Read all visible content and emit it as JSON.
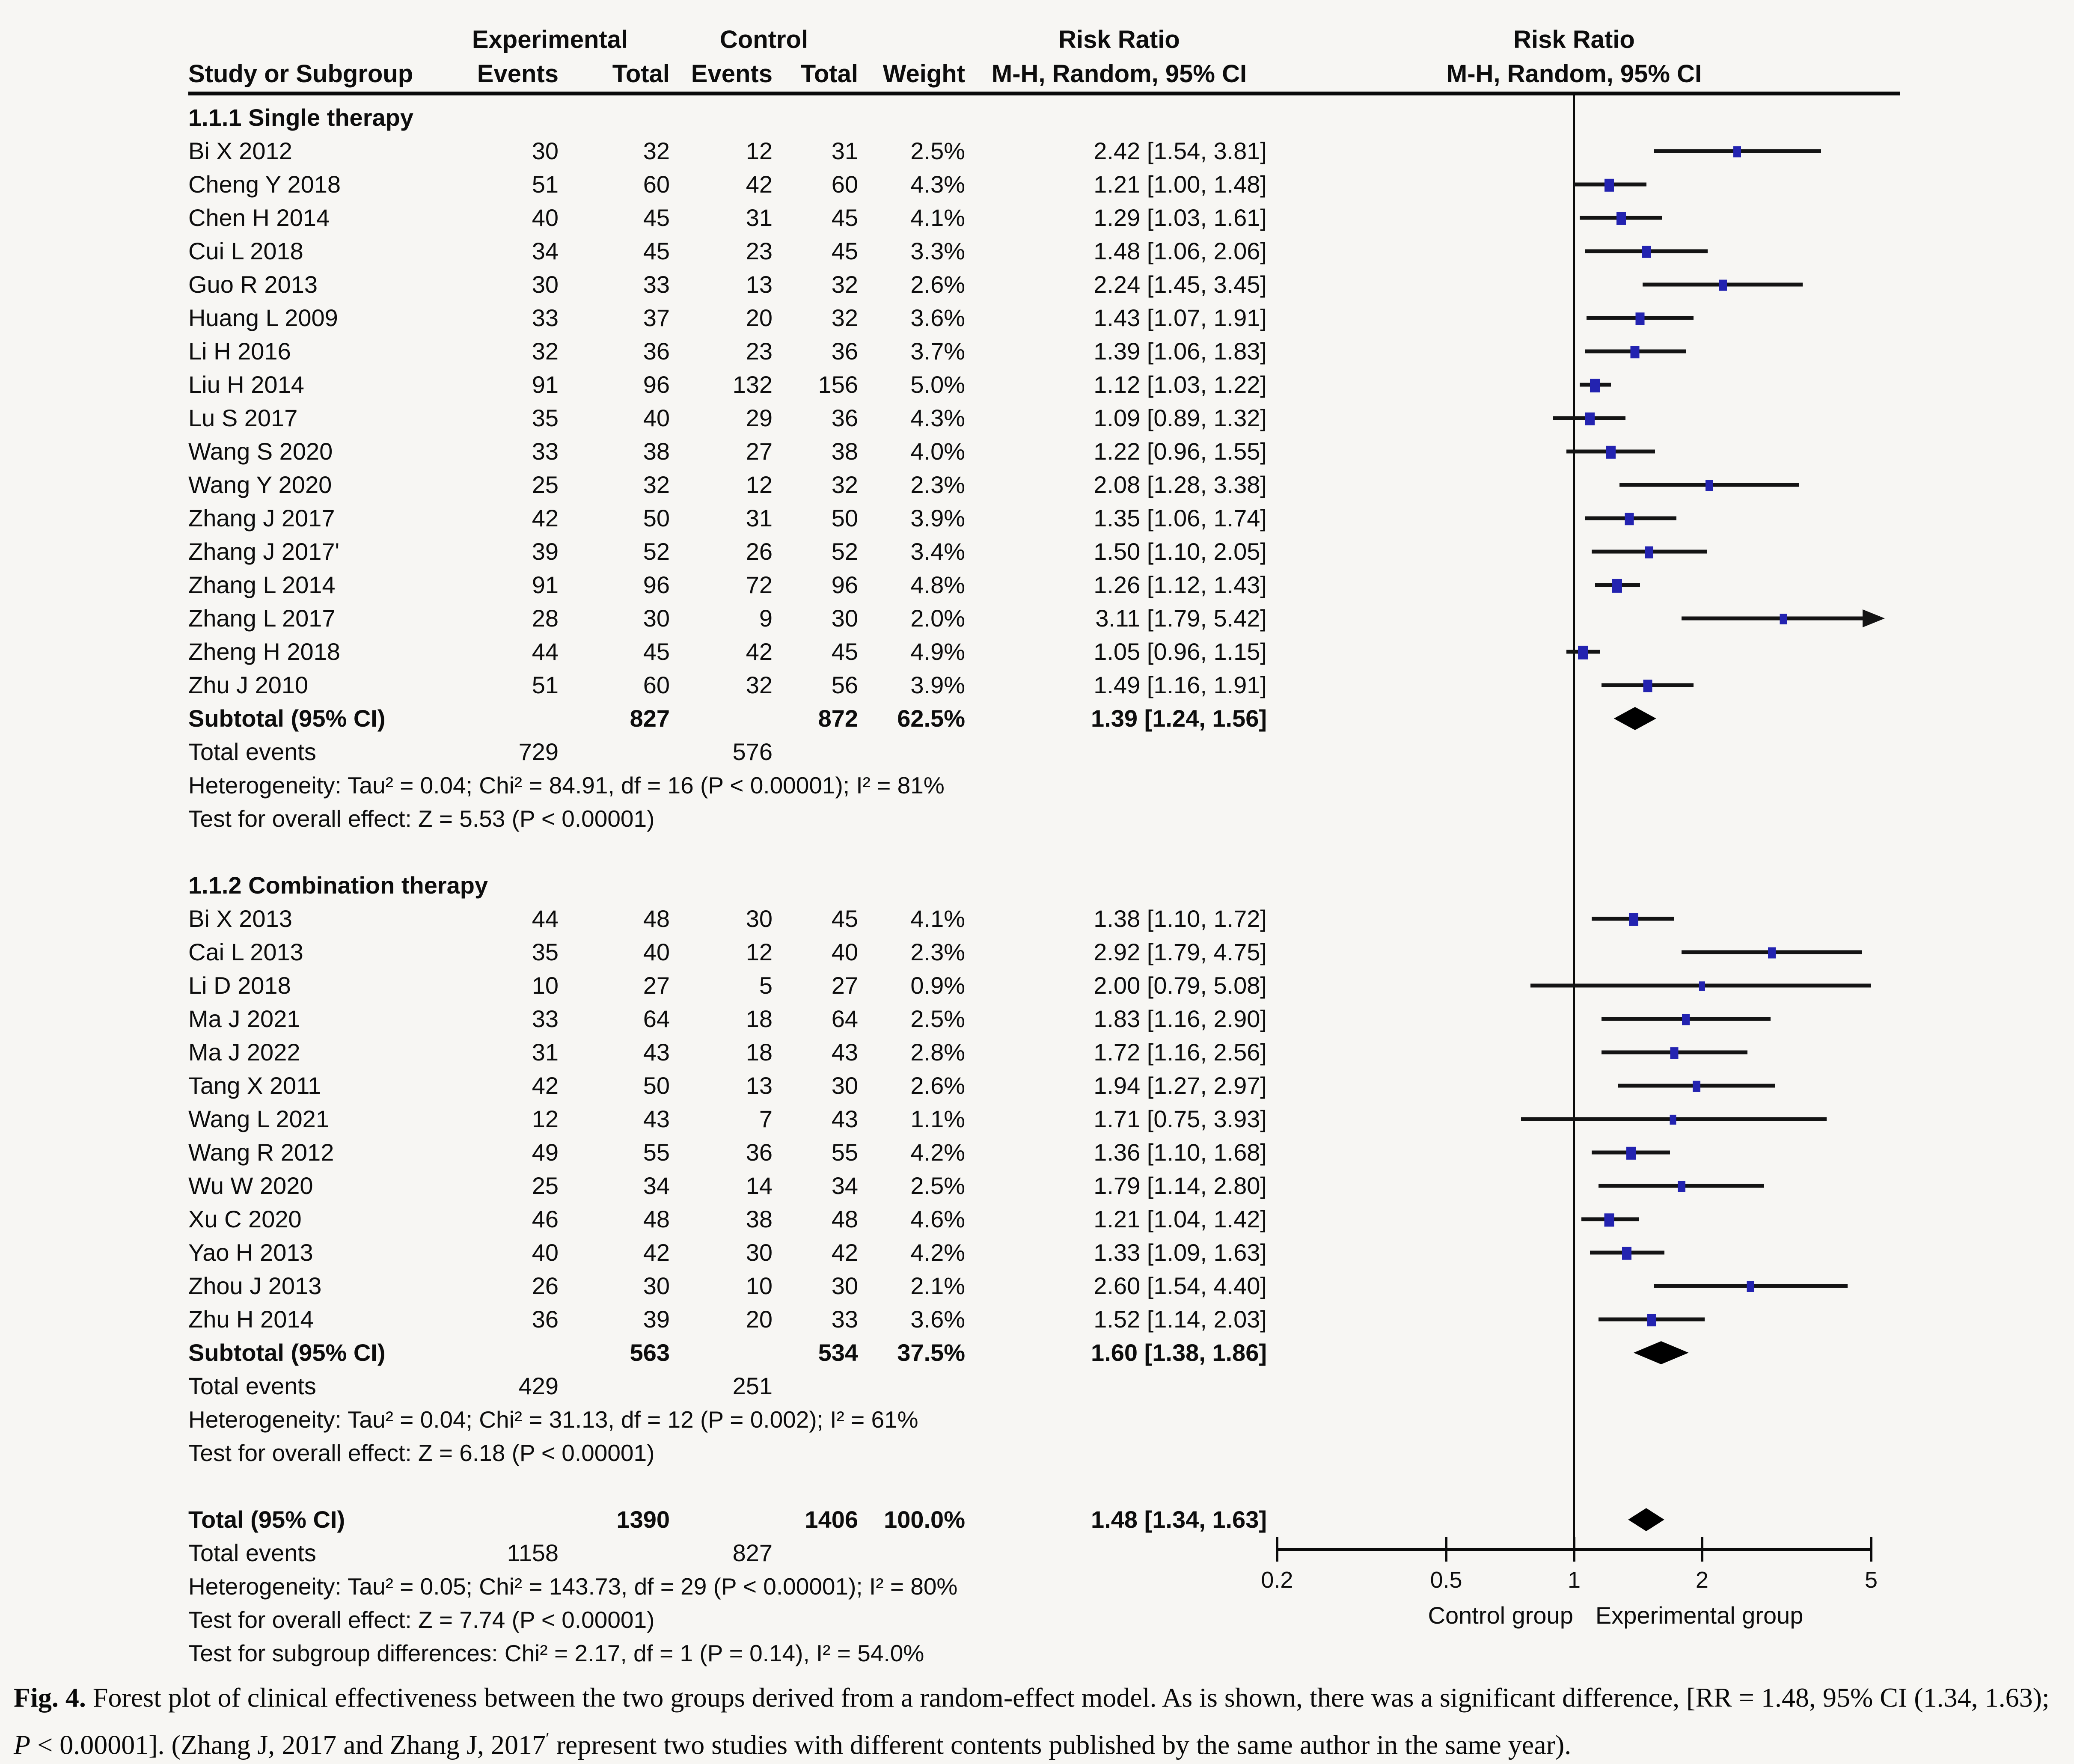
{
  "header": {
    "study_col": "Study or Subgroup",
    "exp_group": "Experimental",
    "ctl_group": "Control",
    "events_col": "Events",
    "total_col": "Total",
    "weight_col": "Weight",
    "rr_line1": "Risk Ratio",
    "rr_line2": "M-H, Random, 95% CI",
    "plot_line1": "Risk Ratio",
    "plot_line2": "M-H, Random, 95% CI"
  },
  "chart_data": {
    "type": "forest",
    "x_scale": "log",
    "marker_color": "#2323b0",
    "axis": {
      "min": 0.2,
      "max": 5,
      "ticks": [
        0.2,
        0.5,
        1,
        2,
        5
      ],
      "left_label": "Control group",
      "right_label": "Experimental group"
    },
    "sections": [
      {
        "title": "1.1.1 Single therapy",
        "studies": [
          {
            "name": "Bi X 2012",
            "ev1": 30,
            "n1": 32,
            "ev2": 12,
            "n2": 31,
            "weight": "2.5%",
            "rr": 2.42,
            "lo": 1.54,
            "hi": 3.81
          },
          {
            "name": "Cheng Y 2018",
            "ev1": 51,
            "n1": 60,
            "ev2": 42,
            "n2": 60,
            "weight": "4.3%",
            "rr": 1.21,
            "lo": 1.0,
            "hi": 1.48
          },
          {
            "name": "Chen H 2014",
            "ev1": 40,
            "n1": 45,
            "ev2": 31,
            "n2": 45,
            "weight": "4.1%",
            "rr": 1.29,
            "lo": 1.03,
            "hi": 1.61
          },
          {
            "name": "Cui L 2018",
            "ev1": 34,
            "n1": 45,
            "ev2": 23,
            "n2": 45,
            "weight": "3.3%",
            "rr": 1.48,
            "lo": 1.06,
            "hi": 2.06
          },
          {
            "name": "Guo R 2013",
            "ev1": 30,
            "n1": 33,
            "ev2": 13,
            "n2": 32,
            "weight": "2.6%",
            "rr": 2.24,
            "lo": 1.45,
            "hi": 3.45
          },
          {
            "name": "Huang L 2009",
            "ev1": 33,
            "n1": 37,
            "ev2": 20,
            "n2": 32,
            "weight": "3.6%",
            "rr": 1.43,
            "lo": 1.07,
            "hi": 1.91
          },
          {
            "name": "Li H 2016",
            "ev1": 32,
            "n1": 36,
            "ev2": 23,
            "n2": 36,
            "weight": "3.7%",
            "rr": 1.39,
            "lo": 1.06,
            "hi": 1.83
          },
          {
            "name": "Liu H 2014",
            "ev1": 91,
            "n1": 96,
            "ev2": 132,
            "n2": 156,
            "weight": "5.0%",
            "rr": 1.12,
            "lo": 1.03,
            "hi": 1.22
          },
          {
            "name": "Lu S 2017",
            "ev1": 35,
            "n1": 40,
            "ev2": 29,
            "n2": 36,
            "weight": "4.3%",
            "rr": 1.09,
            "lo": 0.89,
            "hi": 1.32
          },
          {
            "name": "Wang S 2020",
            "ev1": 33,
            "n1": 38,
            "ev2": 27,
            "n2": 38,
            "weight": "4.0%",
            "rr": 1.22,
            "lo": 0.96,
            "hi": 1.55
          },
          {
            "name": "Wang Y 2020",
            "ev1": 25,
            "n1": 32,
            "ev2": 12,
            "n2": 32,
            "weight": "2.3%",
            "rr": 2.08,
            "lo": 1.28,
            "hi": 3.38
          },
          {
            "name": "Zhang J 2017",
            "ev1": 42,
            "n1": 50,
            "ev2": 31,
            "n2": 50,
            "weight": "3.9%",
            "rr": 1.35,
            "lo": 1.06,
            "hi": 1.74
          },
          {
            "name": "Zhang J 2017'",
            "ev1": 39,
            "n1": 52,
            "ev2": 26,
            "n2": 52,
            "weight": "3.4%",
            "rr": 1.5,
            "lo": 1.1,
            "hi": 2.05
          },
          {
            "name": "Zhang L 2014",
            "ev1": 91,
            "n1": 96,
            "ev2": 72,
            "n2": 96,
            "weight": "4.8%",
            "rr": 1.26,
            "lo": 1.12,
            "hi": 1.43
          },
          {
            "name": "Zhang L 2017",
            "ev1": 28,
            "n1": 30,
            "ev2": 9,
            "n2": 30,
            "weight": "2.0%",
            "rr": 3.11,
            "lo": 1.79,
            "hi": 5.42,
            "arrow_hi": true
          },
          {
            "name": "Zheng H 2018",
            "ev1": 44,
            "n1": 45,
            "ev2": 42,
            "n2": 45,
            "weight": "4.9%",
            "rr": 1.05,
            "lo": 0.96,
            "hi": 1.15
          },
          {
            "name": "Zhu J 2010",
            "ev1": 51,
            "n1": 60,
            "ev2": 32,
            "n2": 56,
            "weight": "3.9%",
            "rr": 1.49,
            "lo": 1.16,
            "hi": 1.91
          }
        ],
        "subtotal": {
          "label": "Subtotal (95% CI)",
          "n1": 827,
          "n2": 872,
          "weight": "62.5%",
          "rr": 1.39,
          "lo": 1.24,
          "hi": 1.56
        },
        "total_events": {
          "label": "Total events",
          "exp": 729,
          "ctl": 576
        },
        "heterogeneity": "Heterogeneity: Tau² = 0.04; Chi² = 84.91, df = 16 (P < 0.00001); I² = 81%",
        "overall_effect": "Test for overall effect: Z = 5.53 (P < 0.00001)"
      },
      {
        "title": "1.1.2 Combination therapy",
        "studies": [
          {
            "name": "Bi X 2013",
            "ev1": 44,
            "n1": 48,
            "ev2": 30,
            "n2": 45,
            "weight": "4.1%",
            "rr": 1.38,
            "lo": 1.1,
            "hi": 1.72
          },
          {
            "name": "Cai L 2013",
            "ev1": 35,
            "n1": 40,
            "ev2": 12,
            "n2": 40,
            "weight": "2.3%",
            "rr": 2.92,
            "lo": 1.79,
            "hi": 4.75
          },
          {
            "name": "Li D 2018",
            "ev1": 10,
            "n1": 27,
            "ev2": 5,
            "n2": 27,
            "weight": "0.9%",
            "rr": 2.0,
            "lo": 0.79,
            "hi": 5.08
          },
          {
            "name": "Ma J 2021",
            "ev1": 33,
            "n1": 64,
            "ev2": 18,
            "n2": 64,
            "weight": "2.5%",
            "rr": 1.83,
            "lo": 1.16,
            "hi": 2.9
          },
          {
            "name": "Ma J 2022",
            "ev1": 31,
            "n1": 43,
            "ev2": 18,
            "n2": 43,
            "weight": "2.8%",
            "rr": 1.72,
            "lo": 1.16,
            "hi": 2.56
          },
          {
            "name": "Tang X 2011",
            "ev1": 42,
            "n1": 50,
            "ev2": 13,
            "n2": 30,
            "weight": "2.6%",
            "rr": 1.94,
            "lo": 1.27,
            "hi": 2.97
          },
          {
            "name": "Wang L 2021",
            "ev1": 12,
            "n1": 43,
            "ev2": 7,
            "n2": 43,
            "weight": "1.1%",
            "rr": 1.71,
            "lo": 0.75,
            "hi": 3.93
          },
          {
            "name": "Wang R 2012",
            "ev1": 49,
            "n1": 55,
            "ev2": 36,
            "n2": 55,
            "weight": "4.2%",
            "rr": 1.36,
            "lo": 1.1,
            "hi": 1.68
          },
          {
            "name": "Wu W 2020",
            "ev1": 25,
            "n1": 34,
            "ev2": 14,
            "n2": 34,
            "weight": "2.5%",
            "rr": 1.79,
            "lo": 1.14,
            "hi": 2.8
          },
          {
            "name": "Xu C 2020",
            "ev1": 46,
            "n1": 48,
            "ev2": 38,
            "n2": 48,
            "weight": "4.6%",
            "rr": 1.21,
            "lo": 1.04,
            "hi": 1.42
          },
          {
            "name": "Yao H 2013",
            "ev1": 40,
            "n1": 42,
            "ev2": 30,
            "n2": 42,
            "weight": "4.2%",
            "rr": 1.33,
            "lo": 1.09,
            "hi": 1.63
          },
          {
            "name": "Zhou J 2013",
            "ev1": 26,
            "n1": 30,
            "ev2": 10,
            "n2": 30,
            "weight": "2.1%",
            "rr": 2.6,
            "lo": 1.54,
            "hi": 4.4
          },
          {
            "name": "Zhu H 2014",
            "ev1": 36,
            "n1": 39,
            "ev2": 20,
            "n2": 33,
            "weight": "3.6%",
            "rr": 1.52,
            "lo": 1.14,
            "hi": 2.03
          }
        ],
        "subtotal": {
          "label": "Subtotal (95% CI)",
          "n1": 563,
          "n2": 534,
          "weight": "37.5%",
          "rr": 1.6,
          "lo": 1.38,
          "hi": 1.86
        },
        "total_events": {
          "label": "Total events",
          "exp": 429,
          "ctl": 251
        },
        "heterogeneity": "Heterogeneity: Tau² = 0.04; Chi² = 31.13, df = 12 (P = 0.002); I² = 61%",
        "overall_effect": "Test for overall effect: Z = 6.18 (P < 0.00001)"
      }
    ],
    "total": {
      "label": "Total (95% CI)",
      "n1": 1390,
      "n2": 1406,
      "weight": "100.0%",
      "rr": 1.48,
      "lo": 1.34,
      "hi": 1.63,
      "total_events": {
        "label": "Total events",
        "exp": 1158,
        "ctl": 827
      },
      "heterogeneity": "Heterogeneity: Tau² = 0.05; Chi² = 143.73, df = 29 (P < 0.00001); I² = 80%",
      "overall_effect": "Test for overall effect: Z = 7.74 (P < 0.00001)",
      "subgroup_diff": "Test for subgroup differences: Chi² = 2.17, df = 1 (P = 0.14), I² = 54.0%"
    }
  },
  "caption": {
    "segments": [
      {
        "t": "Fig. 4.",
        "b": true
      },
      {
        "t": " Forest plot of clinical effectiveness between the two groups derived from a random-effect model. As is shown, there was a significant difference, [RR = 1.48, 95% CI (1.34, 1.63); "
      },
      {
        "t": "P",
        "i": true
      },
      {
        "t": " < 0.00001]. (Zhang J, 2017 and Zhang J, 2017"
      },
      {
        "t": "′",
        "sup": true
      },
      {
        "t": " represent two studies with different contents published by the same author in the same year)."
      }
    ]
  }
}
